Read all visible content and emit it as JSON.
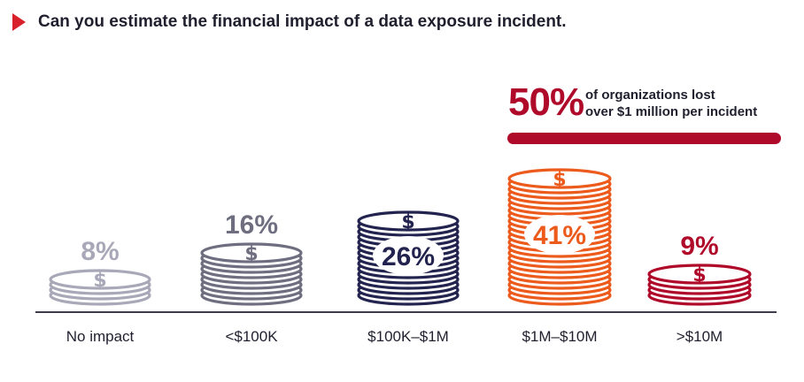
{
  "title": "Can you estimate the financial impact of a data exposure incident.",
  "colors": {
    "accent_red": "#b00a2a",
    "title_arrow": "#d9212c",
    "text_dark": "#1f1f2e",
    "baseline": "#3d3d4a",
    "coin_symbol": "$"
  },
  "callout": {
    "value": "50%",
    "line1": "of organizations lost",
    "line2": "over $1 million per incident"
  },
  "chart_data": {
    "type": "bar",
    "categories": [
      "No impact",
      "<$100K",
      "$100K–$1M",
      "$1M–$10M",
      ">$10M"
    ],
    "values": [
      8,
      16,
      26,
      41,
      9
    ],
    "value_labels": [
      "8%",
      "16%",
      "26%",
      "41%",
      "9%"
    ],
    "unit": "%",
    "series_colors": [
      "#a8a8b8",
      "#6e6e80",
      "#23234f",
      "#ec5a1c",
      "#b00a2a"
    ],
    "grid": false,
    "legend": "none"
  }
}
